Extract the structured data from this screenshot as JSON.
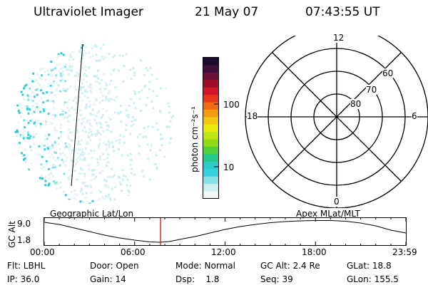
{
  "header": {
    "instrument": "Ultraviolet Imager",
    "date": "21 May 07",
    "time": "07:43:55 UT"
  },
  "colorbar": {
    "unit_label": "photon cm⁻²s⁻¹",
    "tick_labels": [
      "100",
      "10"
    ],
    "colors_top_to_bottom": [
      "#1a0a2e",
      "#3d0f3a",
      "#6a0f3a",
      "#a00f2a",
      "#d4142b",
      "#e8361a",
      "#ef6a10",
      "#f29a0f",
      "#f2c70f",
      "#eaea10",
      "#bfe614",
      "#8ddc1b",
      "#4fd13a",
      "#22c88e",
      "#2ec9c9",
      "#36d3dc",
      "#86e4e8",
      "#cdeff0",
      "#eef6f6"
    ]
  },
  "polar_plot": {
    "mlt_labels": {
      "top": "12",
      "bottom": "0",
      "left": "18",
      "right": "6"
    },
    "lat_labels": [
      "60",
      "70",
      "80"
    ]
  },
  "timeline": {
    "left_label": "Geographic Lat/Lon",
    "right_label": "Apex MLat/MLT",
    "y_axis_title": "GC Alt",
    "y_ticks": [
      "9.0",
      "1.8"
    ],
    "x_ticks": [
      "00:00",
      "06:00",
      "12:00",
      "18:00",
      "23:59"
    ],
    "cursor_color": "#d40000"
  },
  "info": {
    "row1": [
      "Flt: LBHL",
      "Door: Open",
      "Mode: Normal",
      "GC Alt: 2.4 Re",
      "GLat: 18.8"
    ],
    "row2": [
      "IP: 36.0",
      "Gain: 14",
      "Dsp:    1.8",
      "Seq: 39",
      "GLon: 155.5"
    ]
  }
}
